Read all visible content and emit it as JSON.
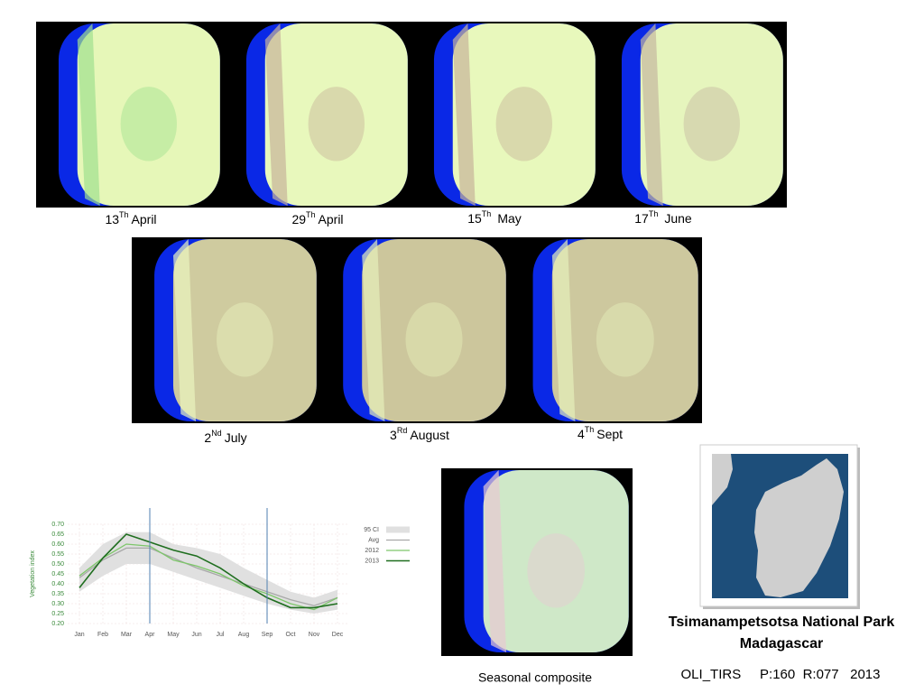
{
  "captions": [
    {
      "day": "13",
      "sup": "Th",
      "month": "April"
    },
    {
      "day": "29",
      "sup": "Th",
      "month": "April"
    },
    {
      "day": "15",
      "sup": "Th",
      "month": "May"
    },
    {
      "day": "17",
      "sup": "Th",
      "month": "June"
    },
    {
      "day": "2",
      "sup": "Nd",
      "month": "July"
    },
    {
      "day": "3",
      "sup": "Rd",
      "month": "August"
    },
    {
      "day": "4",
      "sup": "Th",
      "month": "Sept"
    }
  ],
  "composite_caption": "Seasonal composite",
  "site": {
    "title": "Tsimanampetsotsa National Park",
    "country": "Madagascar",
    "footer": "OLI_TIRS     P:160  R:077   2013"
  },
  "chart_data": {
    "type": "line",
    "y_label": "Vegetation index",
    "categories": [
      "Jan",
      "Feb",
      "Mar",
      "Apr",
      "May",
      "Jun",
      "Jul",
      "Aug",
      "Sep",
      "Oct",
      "Nov",
      "Dec"
    ],
    "highlight_categories": [
      "Apr",
      "Sep"
    ],
    "ylim": [
      0.2,
      0.7
    ],
    "yticks": [
      {
        "value": 0.2,
        "label": "0.20"
      },
      0.25,
      {
        "value": 0.3,
        "label": "0.30"
      },
      0.35,
      {
        "value": 0.4,
        "label": "0.40"
      },
      0.45,
      {
        "value": 0.5,
        "label": "0.50"
      },
      0.55,
      {
        "value": 0.6,
        "label": "0.60"
      },
      0.65,
      {
        "value": 0.7,
        "label": "0.70"
      }
    ],
    "grid": true,
    "series": [
      {
        "name": "95 CI",
        "color": "#e0e0e0",
        "values": [
          0.48,
          0.6,
          0.66,
          0.66,
          0.6,
          0.58,
          0.55,
          0.48,
          0.42,
          0.36,
          0.33,
          0.37
        ],
        "lower": [
          0.36,
          0.44,
          0.5,
          0.5,
          0.46,
          0.42,
          0.38,
          0.34,
          0.3,
          0.27,
          0.25,
          0.27
        ]
      },
      {
        "name": "Avg",
        "color": "#a8a8a8",
        "values": [
          0.43,
          0.52,
          0.58,
          0.58,
          0.53,
          0.48,
          0.44,
          0.4,
          0.36,
          0.32,
          0.29,
          0.33
        ]
      },
      {
        "name": "2012",
        "color": "#7dc66a",
        "values": [
          0.44,
          0.53,
          0.6,
          0.59,
          0.52,
          0.49,
          0.45,
          0.39,
          0.35,
          0.3,
          0.27,
          0.33
        ]
      },
      {
        "name": "2013",
        "color": "#1f6e1f",
        "values": [
          0.38,
          0.53,
          0.65,
          0.61,
          0.57,
          0.54,
          0.48,
          0.4,
          0.33,
          0.28,
          0.28,
          0.3
        ]
      }
    ]
  }
}
